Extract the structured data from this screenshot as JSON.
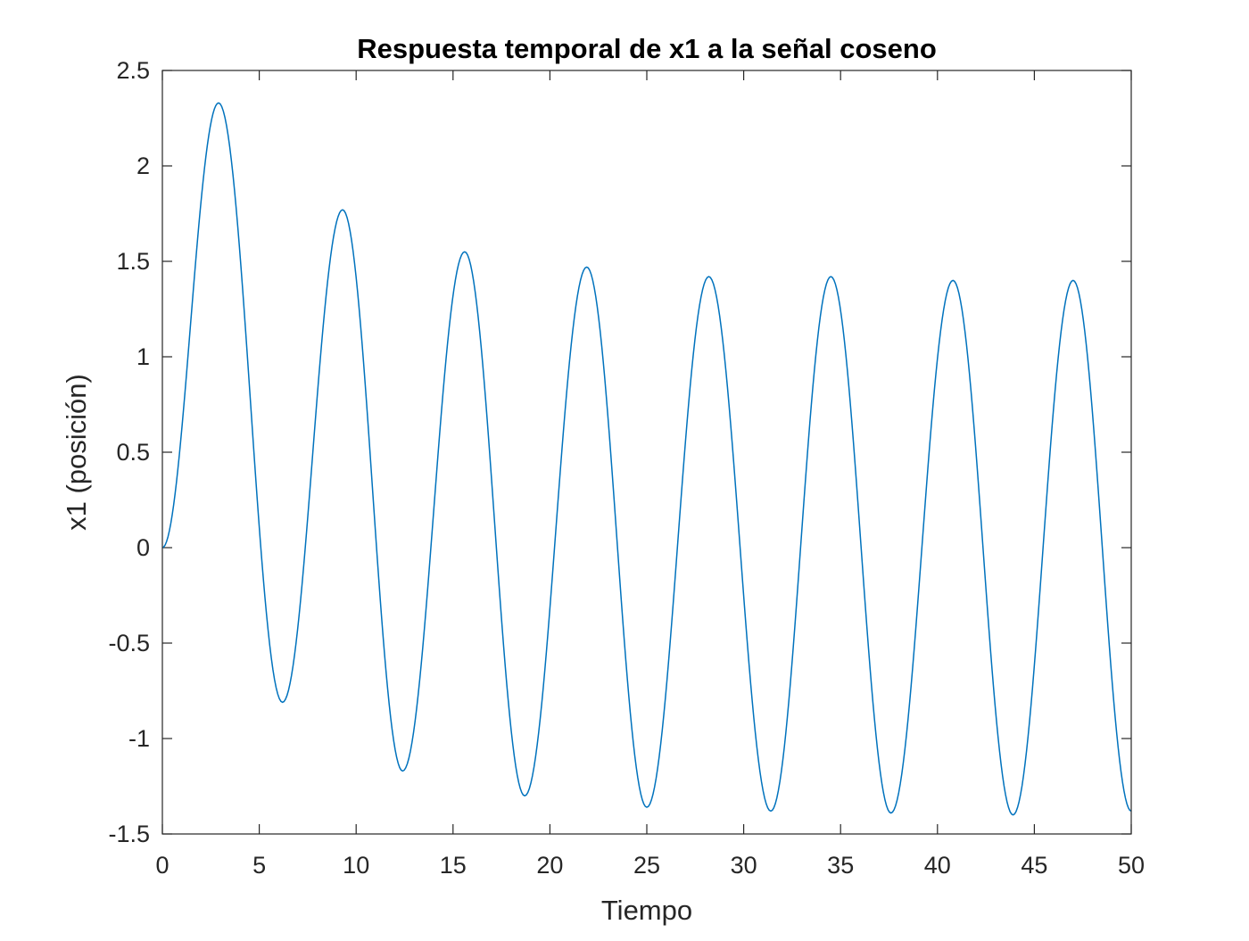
{
  "chart_data": {
    "type": "line",
    "title": "Respuesta temporal de x1 a la señal coseno",
    "xlabel": "Tiempo",
    "ylabel": "x1 (posición)",
    "xlim": [
      0,
      50
    ],
    "ylim": [
      -1.5,
      2.5
    ],
    "xticks": [
      0,
      5,
      10,
      15,
      20,
      25,
      30,
      35,
      40,
      45,
      50
    ],
    "yticks": [
      -1.5,
      -1,
      -0.5,
      0,
      0.5,
      1,
      1.5,
      2,
      2.5
    ],
    "xtick_labels": [
      "0",
      "5",
      "10",
      "15",
      "20",
      "25",
      "30",
      "35",
      "40",
      "45",
      "50"
    ],
    "ytick_labels": [
      "-1.5",
      "-1",
      "-0.5",
      "0",
      "0.5",
      "1",
      "1.5",
      "2",
      "2.5"
    ],
    "grid": false,
    "series": [
      {
        "color": "#0072BD",
        "points": [
          [
            0.0,
            0.0
          ],
          [
            2.9,
            2.33
          ],
          [
            6.2,
            -0.81
          ],
          [
            9.3,
            1.77
          ],
          [
            12.4,
            -1.17
          ],
          [
            15.6,
            1.55
          ],
          [
            18.7,
            -1.3
          ],
          [
            21.9,
            1.47
          ],
          [
            25.0,
            -1.36
          ],
          [
            28.2,
            1.42
          ],
          [
            31.4,
            -1.38
          ],
          [
            34.5,
            1.42
          ],
          [
            37.6,
            -1.39
          ],
          [
            40.8,
            1.4
          ],
          [
            43.9,
            -1.4
          ],
          [
            47.0,
            1.4
          ],
          [
            50.0,
            -1.38
          ]
        ]
      }
    ]
  }
}
